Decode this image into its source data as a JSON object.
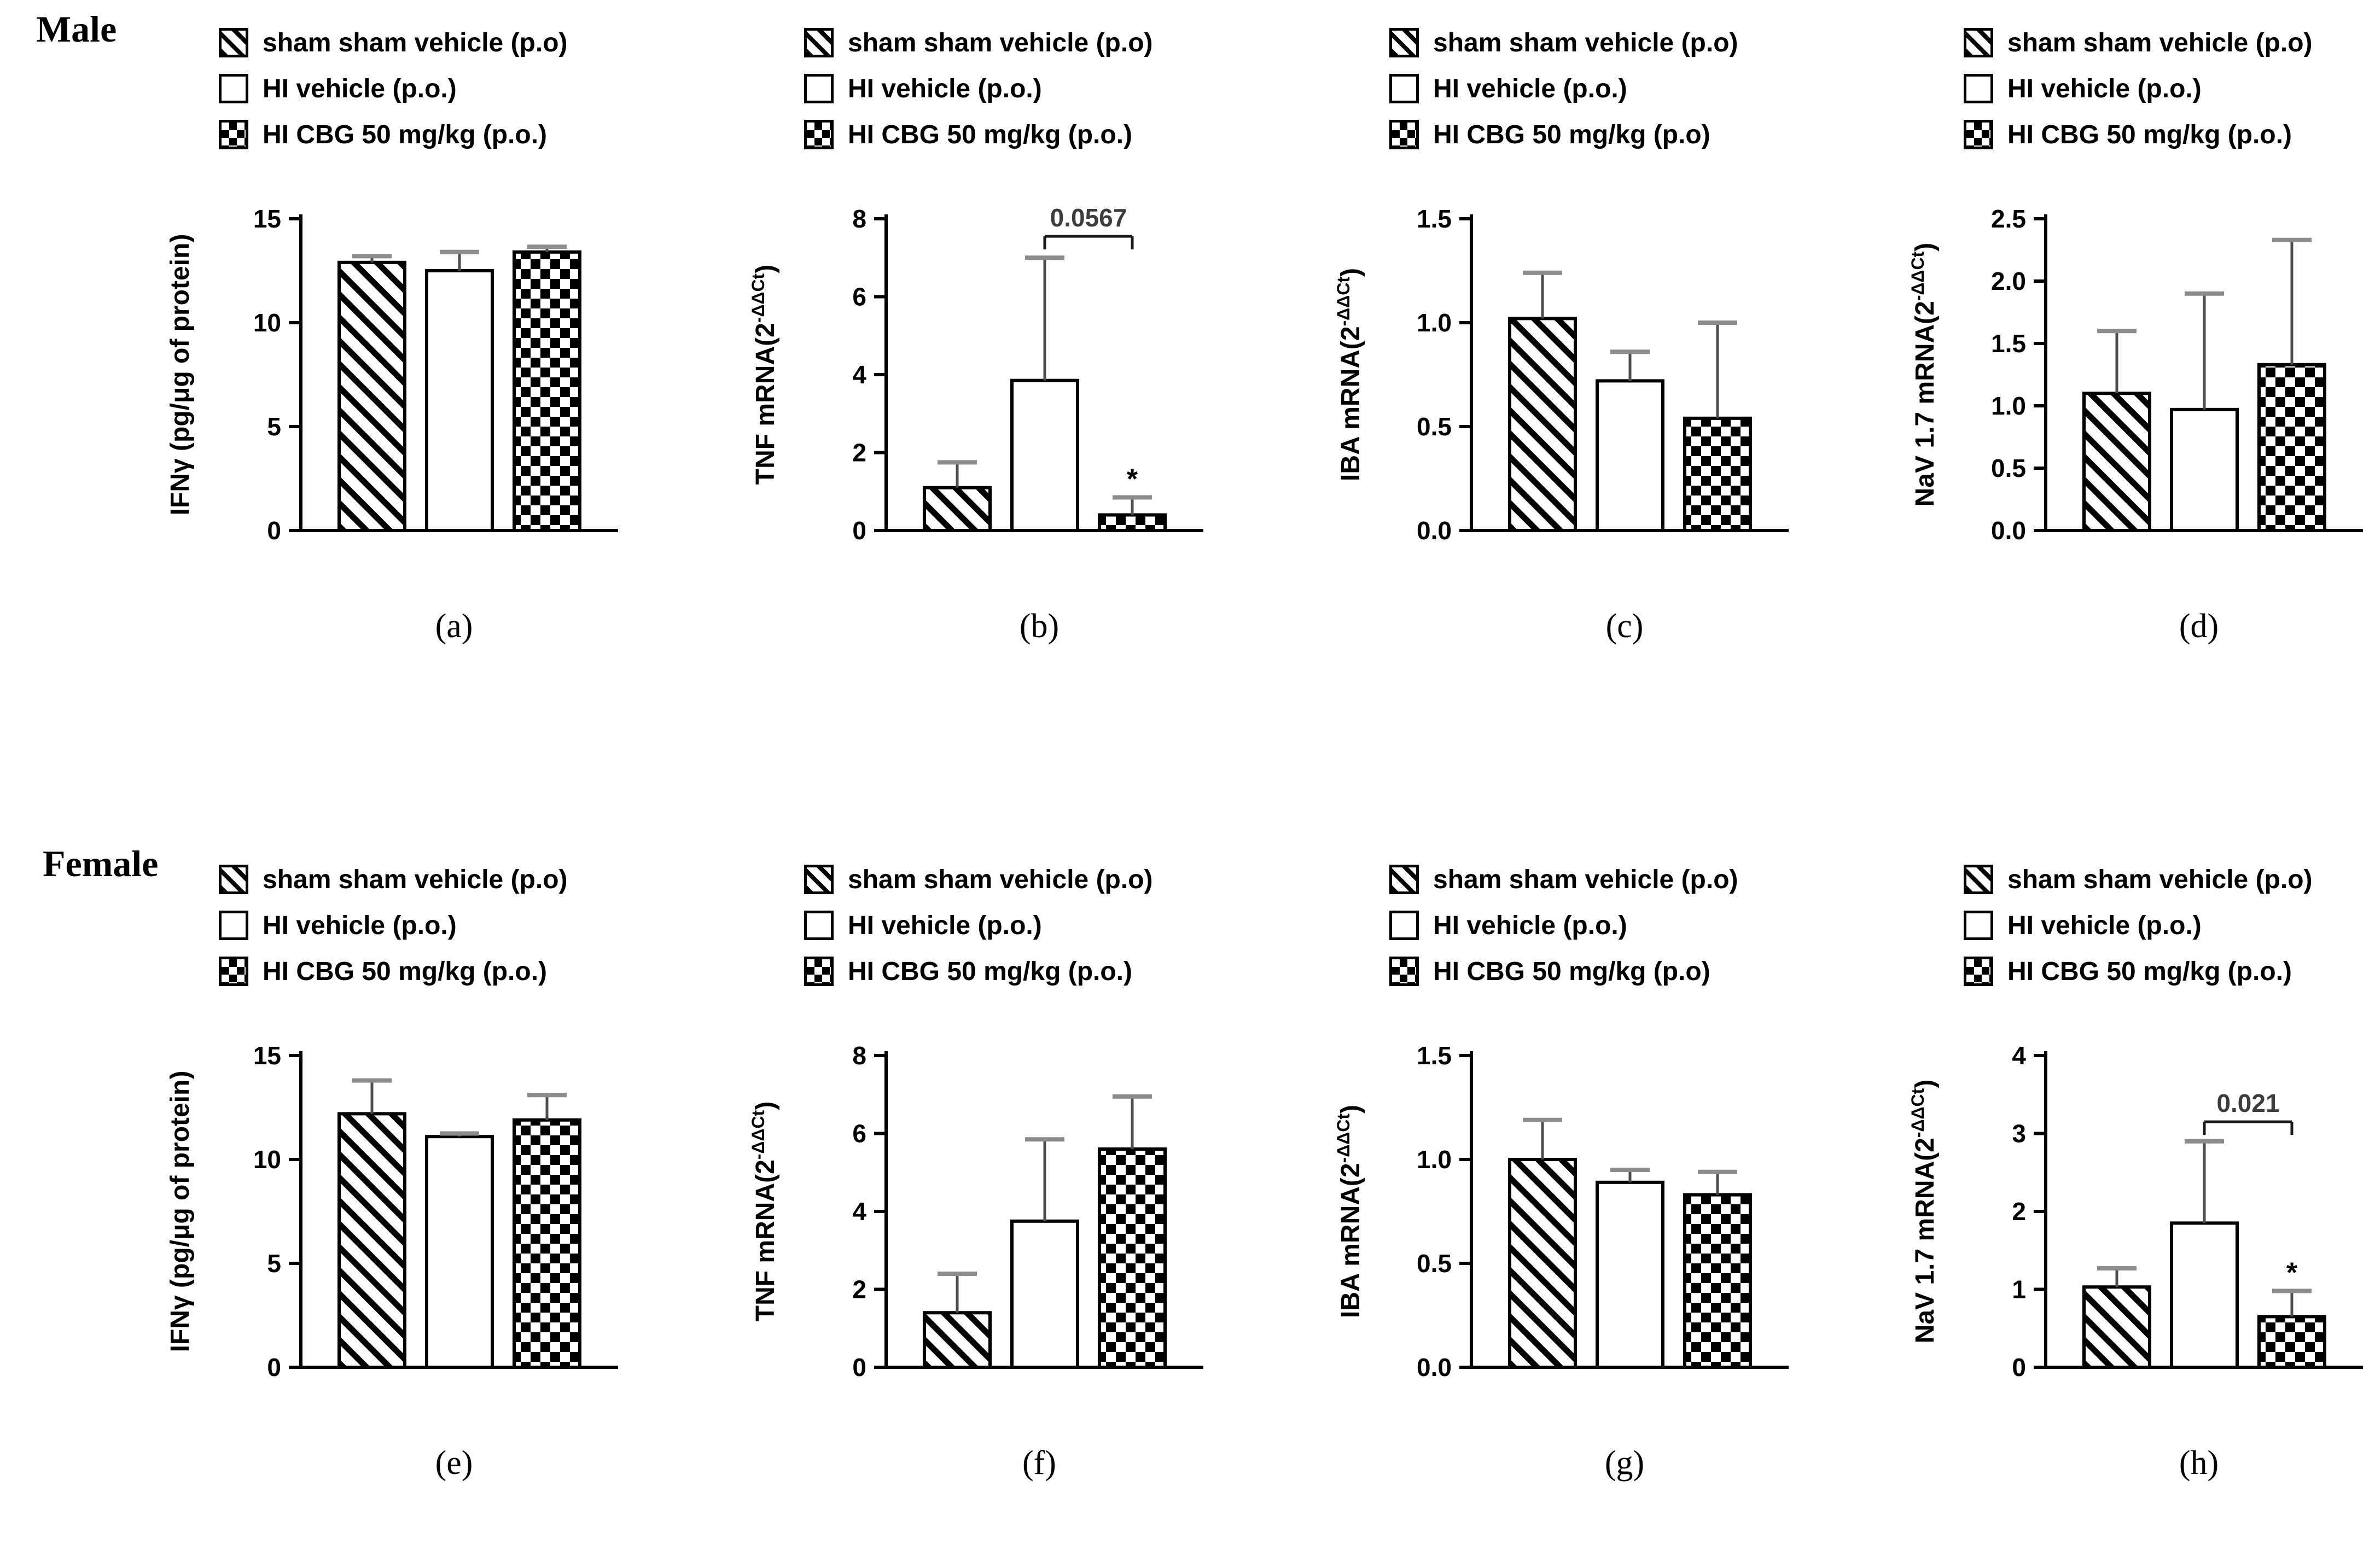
{
  "sections": [
    {
      "title": "Male",
      "panels": [
        "a",
        "b",
        "c",
        "d"
      ]
    },
    {
      "title": "Female",
      "panels": [
        "e",
        "f",
        "g",
        "h"
      ]
    }
  ],
  "legend_icon_names": [
    "diagonal-stripes-swatch",
    "plain-white-swatch",
    "checkerboard-swatch"
  ],
  "chart_data": [
    {
      "id": "a",
      "section": "Male",
      "type": "bar",
      "label": "(a)",
      "ylabel": "IFNγ (pg/μg of protein)",
      "ylabel_parts": {
        "pre": "IFNγ (pg/μg of protein)",
        "sup": "",
        "post": ""
      },
      "legend": [
        "sham sham vehicle (p.o)",
        "HI vehicle (p.o.)",
        "HI CBG 50 mg/kg (p.o.)"
      ],
      "categories": [
        "sham sham vehicle (p.o)",
        "HI vehicle (p.o.)",
        "HI CBG 50 mg/kg (p.o.)"
      ],
      "patterns": [
        "diagonal-stripes",
        "plain-white",
        "checkerboard"
      ],
      "values": [
        12.9,
        12.5,
        13.4
      ],
      "errors": [
        0.3,
        0.9,
        0.25
      ],
      "ylim": [
        0,
        15
      ],
      "yticks": [
        "0",
        "5",
        "10",
        "15"
      ],
      "grid": false,
      "legend_position": "top",
      "significance": null,
      "star_bar": null,
      "star": ""
    },
    {
      "id": "b",
      "section": "Male",
      "type": "bar",
      "label": "(b)",
      "ylabel": "TNF mRNA(2-ΔΔCt)",
      "ylabel_parts": {
        "pre": "TNF mRNA(2",
        "sup": "-ΔΔCt",
        "post": ")"
      },
      "legend": [
        "sham sham vehicle (p.o)",
        "HI vehicle (p.o.)",
        "HI CBG 50 mg/kg (p.o.)"
      ],
      "categories": [
        "sham sham vehicle (p.o)",
        "HI vehicle (p.o.)",
        "HI CBG 50 mg/kg (p.o.)"
      ],
      "patterns": [
        "diagonal-stripes",
        "plain-white",
        "checkerboard"
      ],
      "values": [
        1.1,
        3.85,
        0.4
      ],
      "errors": [
        0.65,
        3.15,
        0.45
      ],
      "ylim": [
        0,
        8
      ],
      "yticks": [
        "0",
        "2",
        "4",
        "6",
        "8"
      ],
      "grid": false,
      "legend_position": "top",
      "significance": {
        "label": "0.0567",
        "from_bar": 1,
        "to_bar": 2,
        "y": 7.55
      },
      "star_bar": 2,
      "star": "*"
    },
    {
      "id": "c",
      "section": "Male",
      "type": "bar",
      "label": "(c)",
      "ylabel": "IBA mRNA(2-ΔΔCt)",
      "ylabel_parts": {
        "pre": "IBA mRNA(2",
        "sup": "-ΔΔCt",
        "post": ")"
      },
      "legend": [
        "sham sham vehicle (p.o)",
        "HI vehicle (p.o.)",
        "HI CBG 50 mg/kg (p.o)"
      ],
      "categories": [
        "sham sham vehicle (p.o)",
        "HI vehicle (p.o.)",
        "HI CBG 50 mg/kg (p.o)"
      ],
      "patterns": [
        "diagonal-stripes",
        "plain-white",
        "checkerboard"
      ],
      "values": [
        1.02,
        0.72,
        0.54
      ],
      "errors": [
        0.22,
        0.14,
        0.46
      ],
      "ylim": [
        0,
        1.5
      ],
      "yticks": [
        "0.0",
        "0.5",
        "1.0",
        "1.5"
      ],
      "grid": false,
      "legend_position": "top",
      "significance": null,
      "star_bar": null,
      "star": ""
    },
    {
      "id": "d",
      "section": "Male",
      "type": "bar",
      "label": "(d)",
      "ylabel": "NaV 1.7 mRNA(2-ΔΔCt)",
      "ylabel_parts": {
        "pre": "NaV 1.7 mRNA(2",
        "sup": "-ΔΔCt",
        "post": ")"
      },
      "legend": [
        "sham sham vehicle (p.o)",
        "HI vehicle (p.o.)",
        "HI CBG 50 mg/kg (p.o.)"
      ],
      "categories": [
        "sham sham vehicle (p.o)",
        "HI vehicle (p.o.)",
        "HI CBG 50 mg/kg (p.o.)"
      ],
      "patterns": [
        "diagonal-stripes",
        "plain-white",
        "checkerboard"
      ],
      "values": [
        1.1,
        0.97,
        1.33
      ],
      "errors": [
        0.5,
        0.93,
        1.0
      ],
      "ylim": [
        0,
        2.5
      ],
      "yticks": [
        "0.0",
        "0.5",
        "1.0",
        "1.5",
        "2.0",
        "2.5"
      ],
      "grid": false,
      "legend_position": "top",
      "significance": null,
      "star_bar": null,
      "star": ""
    },
    {
      "id": "e",
      "section": "Female",
      "type": "bar",
      "label": "(e)",
      "ylabel": "IFNγ (pg/μg of protein)",
      "ylabel_parts": {
        "pre": "IFNγ (pg/μg of protein)",
        "sup": "",
        "post": ""
      },
      "legend": [
        "sham sham vehicle (p.o)",
        "HI vehicle (p.o.)",
        "HI CBG 50 mg/kg (p.o.)"
      ],
      "categories": [
        "sham sham vehicle (p.o)",
        "HI vehicle (p.o.)",
        "HI CBG 50 mg/kg (p.o.)"
      ],
      "patterns": [
        "diagonal-stripes",
        "plain-white",
        "checkerboard"
      ],
      "values": [
        12.2,
        11.1,
        11.9
      ],
      "errors": [
        1.6,
        0.15,
        1.2
      ],
      "ylim": [
        0,
        15
      ],
      "yticks": [
        "0",
        "5",
        "10",
        "15"
      ],
      "grid": false,
      "legend_position": "top",
      "significance": null,
      "star_bar": null,
      "star": ""
    },
    {
      "id": "f",
      "section": "Female",
      "type": "bar",
      "label": "(f)",
      "ylabel": "TNF mRNA(2-ΔΔCt)",
      "ylabel_parts": {
        "pre": "TNF mRNA(2",
        "sup": "-ΔΔCt",
        "post": ")"
      },
      "legend": [
        "sham sham vehicle (p.o)",
        "HI vehicle (p.o.)",
        "HI CBG 50 mg/kg (p.o.)"
      ],
      "categories": [
        "sham sham vehicle (p.o)",
        "HI vehicle (p.o.)",
        "HI CBG 50 mg/kg (p.o.)"
      ],
      "patterns": [
        "diagonal-stripes",
        "plain-white",
        "checkerboard"
      ],
      "values": [
        1.4,
        3.75,
        5.6
      ],
      "errors": [
        1.0,
        2.1,
        1.35
      ],
      "ylim": [
        0,
        8
      ],
      "yticks": [
        "0",
        "2",
        "4",
        "6",
        "8"
      ],
      "grid": false,
      "legend_position": "top",
      "significance": null,
      "star_bar": null,
      "star": ""
    },
    {
      "id": "g",
      "section": "Female",
      "type": "bar",
      "label": "(g)",
      "ylabel": "IBA mRNA(2-ΔΔCt)",
      "ylabel_parts": {
        "pre": "IBA mRNA(2",
        "sup": "-ΔΔCt",
        "post": ")"
      },
      "legend": [
        "sham sham vehicle (p.o)",
        "HI vehicle (p.o.)",
        "HI CBG 50 mg/kg (p.o)"
      ],
      "categories": [
        "sham sham vehicle (p.o)",
        "HI vehicle (p.o.)",
        "HI CBG 50 mg/kg (p.o)"
      ],
      "patterns": [
        "diagonal-stripes",
        "plain-white",
        "checkerboard"
      ],
      "values": [
        1.0,
        0.89,
        0.83
      ],
      "errors": [
        0.19,
        0.06,
        0.11
      ],
      "ylim": [
        0,
        1.5
      ],
      "yticks": [
        "0.0",
        "0.5",
        "1.0",
        "1.5"
      ],
      "grid": false,
      "legend_position": "top",
      "significance": null,
      "star_bar": null,
      "star": ""
    },
    {
      "id": "h",
      "section": "Female",
      "type": "bar",
      "label": "(h)",
      "ylabel": "NaV 1.7 mRNA(2-ΔΔCt)",
      "ylabel_parts": {
        "pre": "NaV 1.7 mRNA(2",
        "sup": "-ΔΔCt",
        "post": ")"
      },
      "legend": [
        "sham sham vehicle (p.o)",
        "HI vehicle (p.o.)",
        "HI CBG 50 mg/kg (p.o.)"
      ],
      "categories": [
        "sham sham vehicle (p.o)",
        "HI vehicle (p.o.)",
        "HI CBG 50 mg/kg (p.o.)"
      ],
      "patterns": [
        "diagonal-stripes",
        "plain-white",
        "checkerboard"
      ],
      "values": [
        1.03,
        1.85,
        0.65
      ],
      "errors": [
        0.24,
        1.05,
        0.33
      ],
      "ylim": [
        0,
        4
      ],
      "yticks": [
        "0",
        "1",
        "2",
        "3",
        "4"
      ],
      "grid": false,
      "legend_position": "top",
      "significance": {
        "label": "0.021",
        "from_bar": 1,
        "to_bar": 2,
        "y": 3.15
      },
      "star_bar": 2,
      "star": "*"
    }
  ],
  "colors": {
    "foreground": "#000000",
    "background": "#ffffff",
    "error_stem": "#4d4d4d",
    "error_cap": "#8c8c8c",
    "p_value_text": "#3d3d3d"
  }
}
